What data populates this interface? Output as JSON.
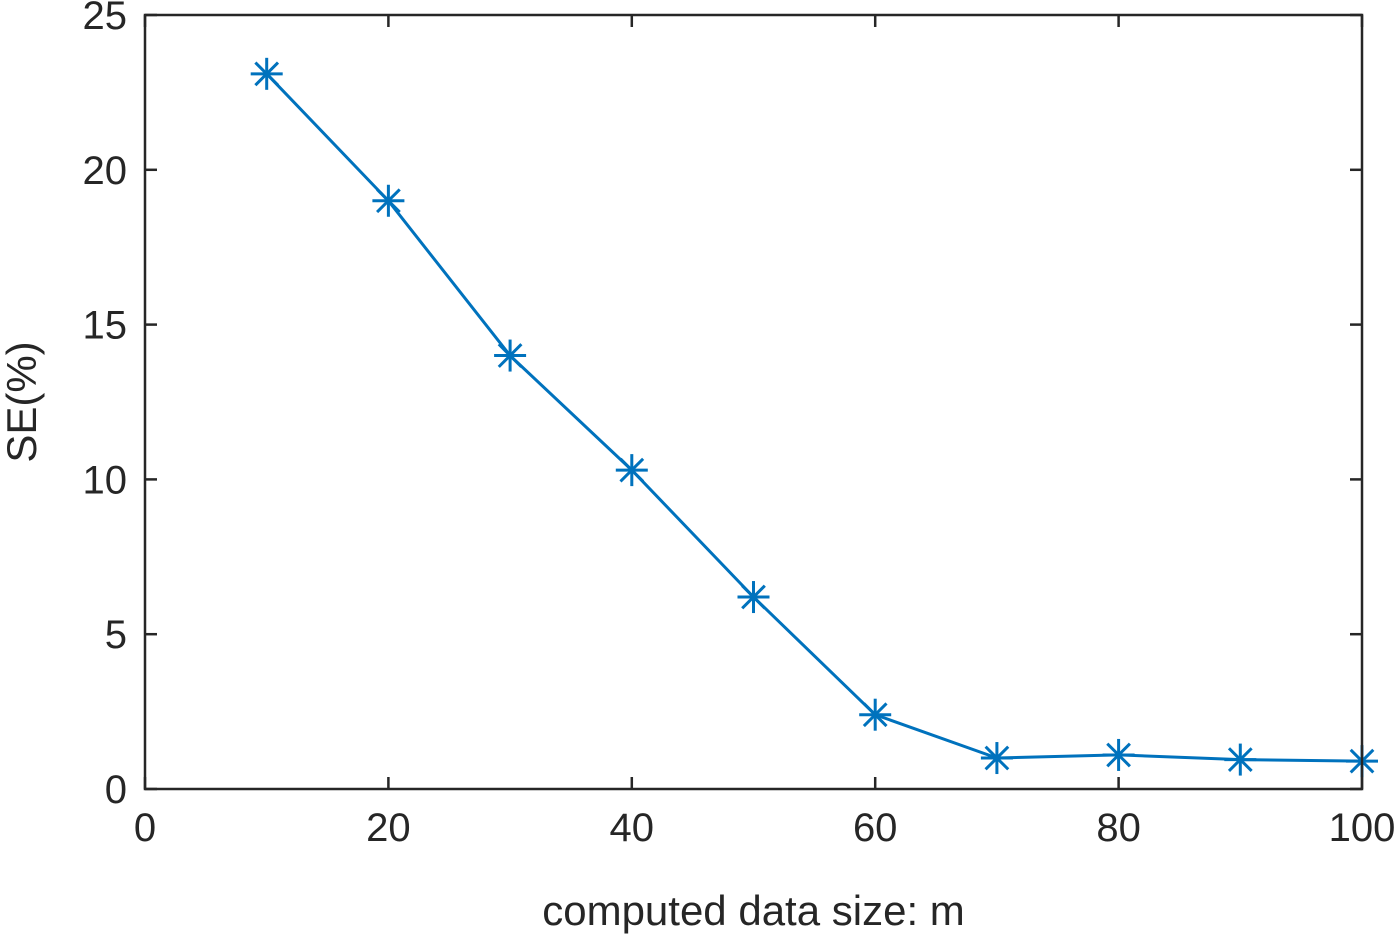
{
  "chart_data": {
    "type": "line",
    "title": "",
    "xlabel": "computed data size: m",
    "ylabel": "SE(%)",
    "xlim": [
      0,
      100
    ],
    "ylim": [
      0,
      25
    ],
    "xticks": [
      0,
      20,
      40,
      60,
      80,
      100
    ],
    "yticks": [
      0,
      5,
      10,
      15,
      20,
      25
    ],
    "grid": false,
    "x": [
      10,
      20,
      30,
      40,
      50,
      60,
      70,
      80,
      90,
      100
    ],
    "series": [
      {
        "values": [
          23.1,
          19.0,
          14.0,
          10.3,
          6.2,
          2.4,
          1.0,
          1.1,
          0.95,
          0.9
        ],
        "marker": "asterisk",
        "color": "#0072BD"
      }
    ]
  }
}
